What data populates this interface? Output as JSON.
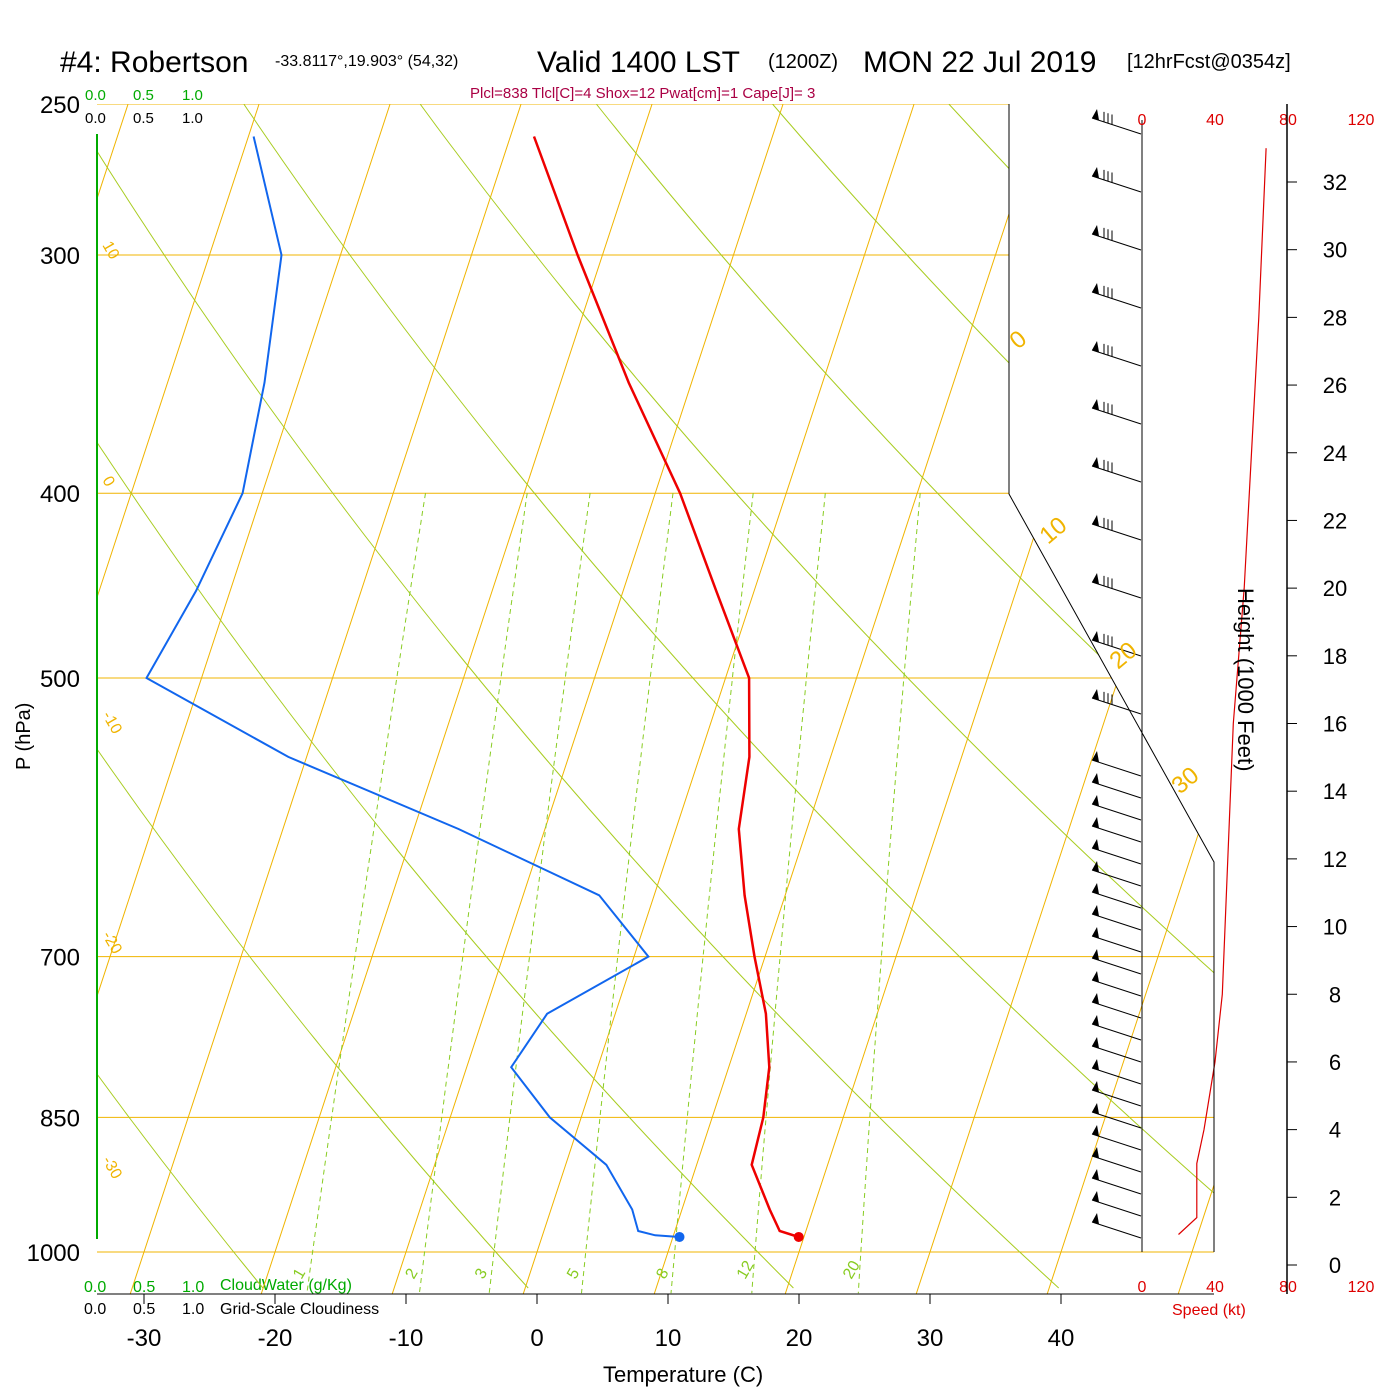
{
  "header": {
    "station": "#4: Robertson",
    "coords": "-33.8117°,19.903° (54,32)",
    "valid": "Valid 1400 LST",
    "zulu": "(1200Z)",
    "date": "MON 22 Jul 2019",
    "forecast": "[12hrFcst@0354z]"
  },
  "indices": "Plcl=838 Tlcl[C]=4 Shox=12 Pwat[cm]=1 Cape[J]= 3",
  "colors": {
    "isotherm": "#f0b400",
    "dry_adiabat": "#a8cc20",
    "mixing_ratio": "#88cc22",
    "temperature": "#ee0000",
    "dewpoint": "#1166ee",
    "cloud_axis": "#00aa00",
    "wind_speed": "#dd0000",
    "indices": "#aa0044"
  },
  "cloud_scales": {
    "top_green": [
      "0.0",
      "0.5",
      "1.0"
    ],
    "top_black": [
      "0.0",
      "0.5",
      "1.0"
    ],
    "bottom_green": [
      "0.0",
      "0.5",
      "1.0"
    ],
    "bottom_green_label": "CloudWater (g/Kg)",
    "bottom_black": [
      "0.0",
      "0.5",
      "1.0"
    ],
    "bottom_black_label": "Grid-Scale Cloudiness"
  },
  "speed_scale": {
    "ticks": [
      "0",
      "40",
      "80",
      "120"
    ],
    "label": "Speed (kt)"
  },
  "height_axis": {
    "label": "Height (1000 Feet)",
    "ticks": [
      "0",
      "2",
      "4",
      "6",
      "8",
      "10",
      "12",
      "14",
      "16",
      "18",
      "20",
      "22",
      "24",
      "26",
      "28",
      "30",
      "32"
    ]
  },
  "chart_data": {
    "type": "line",
    "title": "#4: Robertson Valid 1400 LST (1200Z) MON 22 Jul 2019",
    "xlabel": "Temperature (C)",
    "ylabel": "P (hPa)",
    "x_ticks": [
      "-30",
      "-20",
      "-10",
      "0",
      "10",
      "20",
      "30",
      "40"
    ],
    "y_ticks": [
      "250",
      "300",
      "400",
      "500",
      "700",
      "850",
      "1000"
    ],
    "isotherm_labels": [
      "10",
      "0",
      "-10",
      "-20",
      "-30"
    ],
    "isotherm_labels_right": [
      "0",
      "10",
      "20",
      "30"
    ],
    "mixing_ratio_labels": [
      "1",
      "2",
      "3",
      "5",
      "8",
      "12",
      "20"
    ],
    "temperature_profile": [
      {
        "p": 982,
        "t": 19.6
      },
      {
        "p": 975,
        "t": 18.0
      },
      {
        "p": 950,
        "t": 16.7
      },
      {
        "p": 900,
        "t": 14.2
      },
      {
        "p": 850,
        "t": 13.9
      },
      {
        "p": 800,
        "t": 13.1
      },
      {
        "p": 750,
        "t": 11.5
      },
      {
        "p": 700,
        "t": 9.2
      },
      {
        "p": 650,
        "t": 6.9
      },
      {
        "p": 600,
        "t": 4.8
      },
      {
        "p": 550,
        "t": 3.8
      },
      {
        "p": 500,
        "t": 1.8
      },
      {
        "p": 450,
        "t": -2.9
      },
      {
        "p": 400,
        "t": -8.1
      },
      {
        "p": 350,
        "t": -14.8
      },
      {
        "p": 300,
        "t": -21.9
      },
      {
        "p": 260,
        "t": -28.2
      }
    ],
    "dewpoint_profile": [
      {
        "p": 982,
        "t": 10.5
      },
      {
        "p": 980,
        "t": 8.6
      },
      {
        "p": 975,
        "t": 7.2
      },
      {
        "p": 950,
        "t": 6.2
      },
      {
        "p": 900,
        "t": 3.1
      },
      {
        "p": 850,
        "t": -2.4
      },
      {
        "p": 800,
        "t": -6.6
      },
      {
        "p": 750,
        "t": -5.2
      },
      {
        "p": 700,
        "t": 1.1
      },
      {
        "p": 650,
        "t": -4.2
      },
      {
        "p": 600,
        "t": -16.6
      },
      {
        "p": 550,
        "t": -31.4
      },
      {
        "p": 500,
        "t": -44.2
      },
      {
        "p": 450,
        "t": -42.6
      },
      {
        "p": 400,
        "t": -41.5
      },
      {
        "p": 350,
        "t": -42.6
      },
      {
        "p": 300,
        "t": -44.5
      },
      {
        "p": 260,
        "t": -49.6
      }
    ],
    "surface_temperature": {
      "p": 982,
      "t": 19.6
    },
    "surface_dewpoint": {
      "p": 982,
      "t": 10.5
    },
    "wind_speed_profile": [
      {
        "h": 0.9,
        "kt": 20
      },
      {
        "h": 1.4,
        "kt": 30
      },
      {
        "h": 3,
        "kt": 30
      },
      {
        "h": 4,
        "kt": 34
      },
      {
        "h": 6,
        "kt": 40
      },
      {
        "h": 8,
        "kt": 44
      },
      {
        "h": 12,
        "kt": 47
      },
      {
        "h": 16,
        "kt": 50
      },
      {
        "h": 20,
        "kt": 56
      },
      {
        "h": 24,
        "kt": 60
      },
      {
        "h": 28,
        "kt": 64
      },
      {
        "h": 33,
        "kt": 68
      }
    ]
  }
}
